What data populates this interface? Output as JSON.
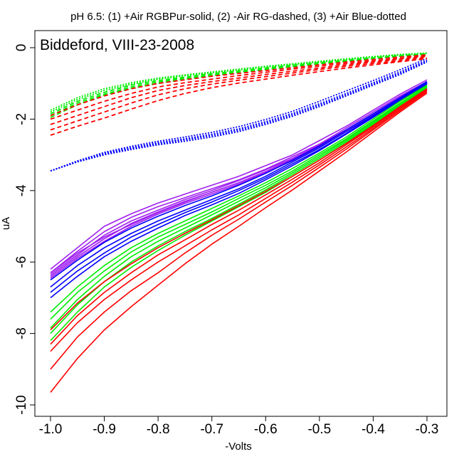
{
  "chart_data": {
    "type": "line",
    "title": "pH 6.5: (1) +Air RGBPur-solid, (2) -Air RG-dashed, (3) +Air Blue-dotted",
    "annotation": "Biddeford, VIII-23-2008",
    "xlabel": "-Volts",
    "ylabel": "uA",
    "xlim": [
      -1.0,
      -0.3
    ],
    "ylim": [
      -10,
      0
    ],
    "x_ticks": [
      -1.0,
      -0.9,
      -0.8,
      -0.7,
      -0.6,
      -0.5,
      -0.4,
      -0.3
    ],
    "x_tick_labels": [
      "-1.0",
      "-0.9",
      "-0.8",
      "-0.7",
      "-0.6",
      "-0.5",
      "-0.4",
      "-0.3"
    ],
    "y_ticks": [
      0,
      -2,
      -4,
      -6,
      -8,
      -10
    ],
    "y_tick_labels": [
      "0",
      "-2",
      "-4",
      "-6",
      "-8",
      "-10"
    ],
    "grid": false,
    "colors": {
      "red": "#ff0000",
      "green": "#00ee00",
      "blue": "#0000ff",
      "purple": "#a020f0"
    },
    "x": [
      -1.0,
      -0.95,
      -0.9,
      -0.85,
      -0.8,
      -0.75,
      -0.7,
      -0.65,
      -0.6,
      -0.55,
      -0.5,
      -0.45,
      -0.4,
      -0.35,
      -0.3
    ],
    "series": [
      {
        "color": "purple",
        "style": "solid",
        "values": [
          -6.2,
          -5.6,
          -5.0,
          -4.65,
          -4.35,
          -4.1,
          -3.85,
          -3.6,
          -3.3,
          -3.0,
          -2.6,
          -2.2,
          -1.75,
          -1.3,
          -0.9
        ]
      },
      {
        "color": "purple",
        "style": "solid",
        "values": [
          -6.3,
          -5.7,
          -5.15,
          -4.75,
          -4.45,
          -4.2,
          -3.95,
          -3.7,
          -3.4,
          -3.05,
          -2.7,
          -2.25,
          -1.8,
          -1.35,
          -0.95
        ]
      },
      {
        "color": "purple",
        "style": "solid",
        "values": [
          -6.35,
          -5.8,
          -5.25,
          -4.85,
          -4.55,
          -4.25,
          -4.0,
          -3.72,
          -3.42,
          -3.1,
          -2.72,
          -2.3,
          -1.85,
          -1.38,
          -0.95
        ]
      },
      {
        "color": "purple",
        "style": "solid",
        "values": [
          -6.4,
          -5.85,
          -5.35,
          -4.92,
          -4.6,
          -4.3,
          -4.05,
          -3.78,
          -3.47,
          -3.12,
          -2.75,
          -2.32,
          -1.88,
          -1.4,
          -0.98
        ]
      },
      {
        "color": "purple",
        "style": "solid",
        "values": [
          -6.45,
          -5.9,
          -5.42,
          -5.0,
          -4.66,
          -4.36,
          -4.1,
          -3.82,
          -3.5,
          -3.16,
          -2.78,
          -2.35,
          -1.9,
          -1.42,
          -1.0
        ]
      },
      {
        "color": "purple",
        "style": "solid",
        "values": [
          -6.3,
          -5.75,
          -5.3,
          -4.95,
          -4.62,
          -4.32,
          -4.05,
          -3.78,
          -3.47,
          -3.13,
          -2.76,
          -2.33,
          -1.88,
          -1.4,
          -0.98
        ]
      },
      {
        "color": "blue",
        "style": "solid",
        "values": [
          -6.5,
          -5.95,
          -5.45,
          -5.05,
          -4.72,
          -4.42,
          -4.15,
          -3.85,
          -3.52,
          -3.15,
          -2.75,
          -2.3,
          -1.85,
          -1.4,
          -0.95
        ]
      },
      {
        "color": "blue",
        "style": "solid",
        "values": [
          -6.7,
          -6.1,
          -5.6,
          -5.2,
          -4.85,
          -4.55,
          -4.25,
          -3.95,
          -3.6,
          -3.2,
          -2.8,
          -2.35,
          -1.9,
          -1.42,
          -0.98
        ]
      },
      {
        "color": "blue",
        "style": "solid",
        "values": [
          -6.85,
          -6.25,
          -5.75,
          -5.3,
          -4.95,
          -4.62,
          -4.32,
          -4.0,
          -3.65,
          -3.25,
          -2.85,
          -2.4,
          -1.92,
          -1.45,
          -1.0
        ]
      },
      {
        "color": "blue",
        "style": "solid",
        "values": [
          -7.0,
          -6.4,
          -5.85,
          -5.42,
          -5.05,
          -4.7,
          -4.4,
          -4.08,
          -3.7,
          -3.3,
          -2.88,
          -2.42,
          -1.95,
          -1.47,
          -1.02
        ]
      },
      {
        "color": "green",
        "style": "solid",
        "values": [
          -7.4,
          -6.7,
          -6.1,
          -5.6,
          -5.2,
          -4.85,
          -4.5,
          -4.15,
          -3.78,
          -3.38,
          -2.95,
          -2.5,
          -2.0,
          -1.5,
          -1.05
        ]
      },
      {
        "color": "green",
        "style": "solid",
        "values": [
          -7.6,
          -6.85,
          -6.25,
          -5.72,
          -5.3,
          -4.95,
          -4.6,
          -4.22,
          -3.85,
          -3.45,
          -3.0,
          -2.55,
          -2.05,
          -1.55,
          -1.08
        ]
      },
      {
        "color": "green",
        "style": "solid",
        "values": [
          -7.85,
          -7.05,
          -6.4,
          -5.85,
          -5.42,
          -5.05,
          -4.68,
          -4.3,
          -3.92,
          -3.5,
          -3.05,
          -2.58,
          -2.08,
          -1.58,
          -1.1
        ]
      },
      {
        "color": "green",
        "style": "solid",
        "values": [
          -8.0,
          -7.2,
          -6.55,
          -6.0,
          -5.55,
          -5.15,
          -4.78,
          -4.38,
          -3.98,
          -3.55,
          -3.1,
          -2.62,
          -2.12,
          -1.6,
          -1.12
        ]
      },
      {
        "color": "green",
        "style": "solid",
        "values": [
          -8.2,
          -7.4,
          -6.7,
          -6.15,
          -5.68,
          -5.25,
          -4.85,
          -4.45,
          -4.05,
          -3.6,
          -3.15,
          -2.66,
          -2.15,
          -1.63,
          -1.14
        ]
      },
      {
        "color": "red",
        "style": "solid",
        "values": [
          -7.9,
          -7.15,
          -6.55,
          -6.05,
          -5.6,
          -5.2,
          -4.82,
          -4.42,
          -4.02,
          -3.6,
          -3.15,
          -2.68,
          -2.18,
          -1.65,
          -1.15
        ]
      },
      {
        "color": "red",
        "style": "solid",
        "values": [
          -8.3,
          -7.5,
          -6.85,
          -6.3,
          -5.8,
          -5.38,
          -4.95,
          -4.55,
          -4.12,
          -3.68,
          -3.22,
          -2.72,
          -2.22,
          -1.68,
          -1.18
        ]
      },
      {
        "color": "red",
        "style": "solid",
        "values": [
          -8.5,
          -7.7,
          -7.05,
          -6.5,
          -6.0,
          -5.55,
          -5.1,
          -4.68,
          -4.22,
          -3.76,
          -3.28,
          -2.78,
          -2.26,
          -1.72,
          -1.2
        ]
      },
      {
        "color": "red",
        "style": "solid",
        "values": [
          -9.0,
          -8.1,
          -7.4,
          -6.8,
          -6.3,
          -5.75,
          -5.25,
          -4.8,
          -4.32,
          -3.85,
          -3.35,
          -2.84,
          -2.3,
          -1.76,
          -1.23
        ]
      },
      {
        "color": "red",
        "style": "solid",
        "values": [
          -9.65,
          -8.7,
          -7.9,
          -7.25,
          -6.65,
          -6.05,
          -5.5,
          -5.0,
          -4.48,
          -3.98,
          -3.45,
          -2.92,
          -2.36,
          -1.8,
          -1.27
        ]
      },
      {
        "color": "blue",
        "style": "dotted",
        "values": [
          -3.45,
          -3.2,
          -3.0,
          -2.85,
          -2.72,
          -2.62,
          -2.5,
          -2.35,
          -2.15,
          -1.92,
          -1.65,
          -1.35,
          -1.05,
          -0.75,
          -0.4
        ]
      },
      {
        "color": "blue",
        "style": "dotted",
        "values": [
          -3.45,
          -3.18,
          -2.95,
          -2.8,
          -2.66,
          -2.55,
          -2.42,
          -2.27,
          -2.07,
          -1.84,
          -1.57,
          -1.28,
          -0.98,
          -0.68,
          -0.35
        ]
      },
      {
        "color": "blue",
        "style": "dotted",
        "values": [
          -3.45,
          -3.17,
          -2.93,
          -2.76,
          -2.62,
          -2.5,
          -2.37,
          -2.21,
          -2.01,
          -1.78,
          -1.5,
          -1.21,
          -0.92,
          -0.62,
          -0.3
        ]
      },
      {
        "color": "blue",
        "style": "dotted",
        "values": [
          -3.45,
          -3.19,
          -2.97,
          -2.82,
          -2.69,
          -2.58,
          -2.46,
          -2.31,
          -2.11,
          -1.88,
          -1.61,
          -1.32,
          -1.02,
          -0.72,
          -0.38
        ]
      },
      {
        "color": "green",
        "style": "dotted",
        "values": [
          -1.75,
          -1.4,
          -1.15,
          -0.98,
          -0.85,
          -0.76,
          -0.68,
          -0.6,
          -0.52,
          -0.45,
          -0.38,
          -0.31,
          -0.25,
          -0.19,
          -0.15
        ]
      },
      {
        "color": "green",
        "style": "dotted",
        "values": [
          -1.8,
          -1.45,
          -1.2,
          -1.02,
          -0.88,
          -0.78,
          -0.7,
          -0.62,
          -0.54,
          -0.47,
          -0.4,
          -0.33,
          -0.26,
          -0.2,
          -0.16
        ]
      },
      {
        "color": "green",
        "style": "dashed",
        "values": [
          -1.85,
          -1.5,
          -1.25,
          -1.05,
          -0.92,
          -0.82,
          -0.73,
          -0.65,
          -0.57,
          -0.49,
          -0.42,
          -0.35,
          -0.28,
          -0.22,
          -0.17
        ]
      },
      {
        "color": "green",
        "style": "dashed",
        "values": [
          -1.9,
          -1.55,
          -1.3,
          -1.1,
          -0.96,
          -0.85,
          -0.76,
          -0.67,
          -0.59,
          -0.51,
          -0.44,
          -0.37,
          -0.3,
          -0.23,
          -0.18
        ]
      },
      {
        "color": "green",
        "style": "dashed",
        "values": [
          -1.95,
          -1.6,
          -1.33,
          -1.14,
          -1.0,
          -0.88,
          -0.78,
          -0.69,
          -0.61,
          -0.53,
          -0.45,
          -0.38,
          -0.31,
          -0.24,
          -0.19
        ]
      },
      {
        "color": "red",
        "style": "dashed",
        "values": [
          -1.9,
          -1.6,
          -1.35,
          -1.15,
          -1.0,
          -0.9,
          -0.8,
          -0.72,
          -0.64,
          -0.56,
          -0.48,
          -0.4,
          -0.33,
          -0.26,
          -0.2
        ]
      },
      {
        "color": "red",
        "style": "dashed",
        "values": [
          -2.0,
          -1.75,
          -1.5,
          -1.28,
          -1.1,
          -0.98,
          -0.88,
          -0.78,
          -0.69,
          -0.6,
          -0.52,
          -0.44,
          -0.37,
          -0.3,
          -0.23
        ]
      },
      {
        "color": "red",
        "style": "dashed",
        "values": [
          -2.15,
          -1.9,
          -1.65,
          -1.4,
          -1.2,
          -1.06,
          -0.95,
          -0.85,
          -0.75,
          -0.66,
          -0.57,
          -0.48,
          -0.4,
          -0.32,
          -0.25
        ]
      },
      {
        "color": "red",
        "style": "dashed",
        "values": [
          -2.3,
          -2.05,
          -1.8,
          -1.55,
          -1.32,
          -1.15,
          -1.02,
          -0.91,
          -0.81,
          -0.71,
          -0.61,
          -0.52,
          -0.44,
          -0.36,
          -0.28
        ]
      },
      {
        "color": "red",
        "style": "dashed",
        "values": [
          -2.45,
          -2.2,
          -1.97,
          -1.72,
          -1.48,
          -1.28,
          -1.12,
          -0.99,
          -0.88,
          -0.77,
          -0.67,
          -0.57,
          -0.48,
          -0.39,
          -0.31
        ]
      }
    ]
  }
}
